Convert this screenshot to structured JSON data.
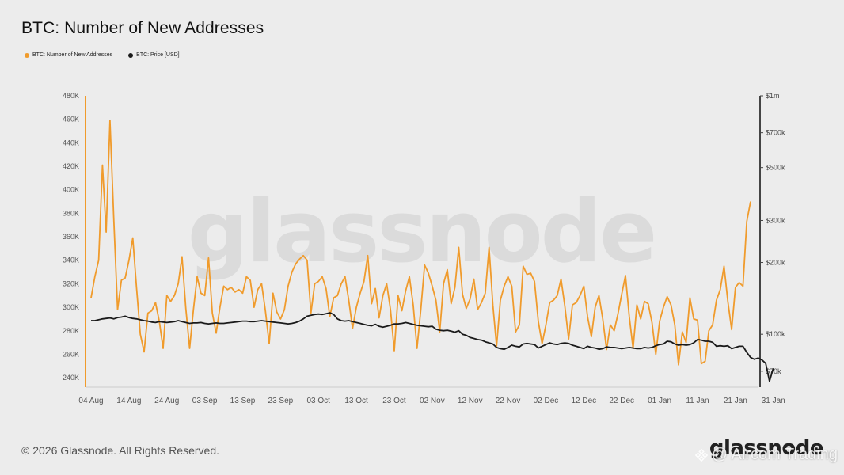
{
  "title": "BTC: Number of New Addresses",
  "legend": [
    {
      "label": "BTC: Number of New Addresses",
      "color": "#f09b2c"
    },
    {
      "label": "BTC: Price [USD]",
      "color": "#1a1a1a"
    }
  ],
  "watermark": "glassnode",
  "footer": "© 2026 Glassnode. All Rights Reserved.",
  "brand": "glassnode",
  "overlay_text": "@ Aircom Trading",
  "overlay_icon": "binance-diamond-icon",
  "chart_data": {
    "type": "line",
    "x_ticks": [
      "04 Aug",
      "14 Aug",
      "24 Aug",
      "03 Sep",
      "13 Sep",
      "23 Sep",
      "03 Oct",
      "13 Oct",
      "23 Oct",
      "02 Nov",
      "12 Nov",
      "22 Nov",
      "02 Dec",
      "12 Dec",
      "22 Dec",
      "01 Jan",
      "11 Jan",
      "21 Jan",
      "31 Jan"
    ],
    "y_left_ticks": [
      "480K",
      "460K",
      "440K",
      "420K",
      "400K",
      "380K",
      "360K",
      "340K",
      "320K",
      "300K",
      "280K",
      "260K",
      "240K"
    ],
    "y_left_range": [
      232000,
      480000
    ],
    "y_right_ticks": [
      "$1m",
      "$700k",
      "$500k",
      "$300k",
      "$200k",
      "$100k",
      "$70k"
    ],
    "y_right_values": [
      1000000,
      700000,
      500000,
      300000,
      200000,
      100000,
      70000
    ],
    "y_right_scale": "log",
    "y_right_range": [
      60000,
      1000000
    ],
    "grid": false,
    "legend_position": "top-left",
    "series": [
      {
        "name": "BTC: Number of New Addresses",
        "color": "#f09b2c",
        "values": [
          308000,
          326000,
          340000,
          421000,
          364000,
          459000,
          375000,
          298000,
          323000,
          325000,
          340000,
          359000,
          317000,
          277000,
          262000,
          295000,
          297000,
          304000,
          288000,
          265000,
          310000,
          305000,
          310000,
          320000,
          343000,
          299000,
          265000,
          298000,
          326000,
          312000,
          310000,
          342000,
          295000,
          278000,
          300000,
          318000,
          315000,
          317000,
          313000,
          315000,
          312000,
          326000,
          323000,
          300000,
          315000,
          320000,
          297000,
          269000,
          312000,
          296000,
          290000,
          298000,
          318000,
          330000,
          337000,
          341000,
          344000,
          340000,
          295000,
          320000,
          322000,
          326000,
          316000,
          292000,
          308000,
          310000,
          320000,
          326000,
          306000,
          282000,
          300000,
          312000,
          322000,
          344000,
          303000,
          316000,
          291000,
          310000,
          320000,
          298000,
          263000,
          310000,
          297000,
          314000,
          326000,
          302000,
          265000,
          298000,
          336000,
          329000,
          318000,
          306000,
          279000,
          320000,
          332000,
          303000,
          317000,
          351000,
          311000,
          299000,
          307000,
          324000,
          298000,
          304000,
          312000,
          351000,
          302000,
          267000,
          306000,
          318000,
          326000,
          318000,
          279000,
          285000,
          335000,
          328000,
          329000,
          322000,
          288000,
          269000,
          285000,
          304000,
          306000,
          310000,
          324000,
          301000,
          273000,
          302000,
          304000,
          310000,
          318000,
          292000,
          275000,
          300000,
          310000,
          290000,
          264000,
          285000,
          280000,
          294000,
          311000,
          327000,
          292000,
          265000,
          302000,
          290000,
          305000,
          303000,
          287000,
          260000,
          288000,
          300000,
          309000,
          302000,
          285000,
          251000,
          279000,
          270000,
          308000,
          290000,
          289000,
          252000,
          254000,
          280000,
          285000,
          306000,
          315000,
          335000,
          305000,
          281000,
          317000,
          321000,
          318000,
          373000,
          390000
        ]
      },
      {
        "name": "BTC: Price [USD]",
        "color": "#1a1a1a",
        "values": [
          114000,
          114000,
          115000,
          116000,
          116500,
          117000,
          116000,
          117500,
          118000,
          119000,
          117500,
          116500,
          116000,
          115000,
          114000,
          113500,
          112500,
          112000,
          113000,
          112500,
          112000,
          112500,
          113000,
          114000,
          113000,
          112000,
          111000,
          111500,
          111500,
          112000,
          111000,
          110500,
          111000,
          111500,
          111000,
          111000,
          111500,
          112000,
          112500,
          113000,
          113500,
          113500,
          113000,
          113000,
          113500,
          114000,
          113500,
          113000,
          112500,
          112000,
          111500,
          111000,
          110500,
          111000,
          112000,
          113500,
          116000,
          119000,
          120000,
          121000,
          121500,
          121000,
          122000,
          123000,
          121000,
          116000,
          114000,
          113500,
          114000,
          113000,
          112000,
          111000,
          110000,
          109000,
          108500,
          110000,
          108000,
          107000,
          108000,
          109000,
          110500,
          110500,
          111000,
          112000,
          111000,
          110000,
          109000,
          108500,
          108000,
          107500,
          108000,
          105000,
          104000,
          103500,
          104000,
          103000,
          102000,
          103500,
          100000,
          99000,
          97000,
          96000,
          95000,
          94500,
          93000,
          92000,
          91000,
          88000,
          87000,
          86500,
          88000,
          90000,
          89000,
          88500,
          91000,
          91500,
          91000,
          90500,
          87500,
          89000,
          90500,
          92000,
          91000,
          90500,
          91500,
          92000,
          91500,
          90000,
          89000,
          88000,
          87000,
          89000,
          88000,
          87500,
          86500,
          87000,
          88500,
          88000,
          88000,
          87500,
          87000,
          87500,
          88000,
          87500,
          87000,
          87000,
          88000,
          87500,
          88000,
          89500,
          90500,
          91000,
          93500,
          93000,
          91000,
          90000,
          90500,
          90000,
          90500,
          92000,
          95000,
          94500,
          93500,
          93500,
          92500,
          89000,
          89500,
          89000,
          89500,
          87000,
          88000,
          89000,
          89000,
          84000,
          80000,
          78500,
          79500,
          78000,
          75500,
          63500,
          72000
        ]
      }
    ]
  }
}
